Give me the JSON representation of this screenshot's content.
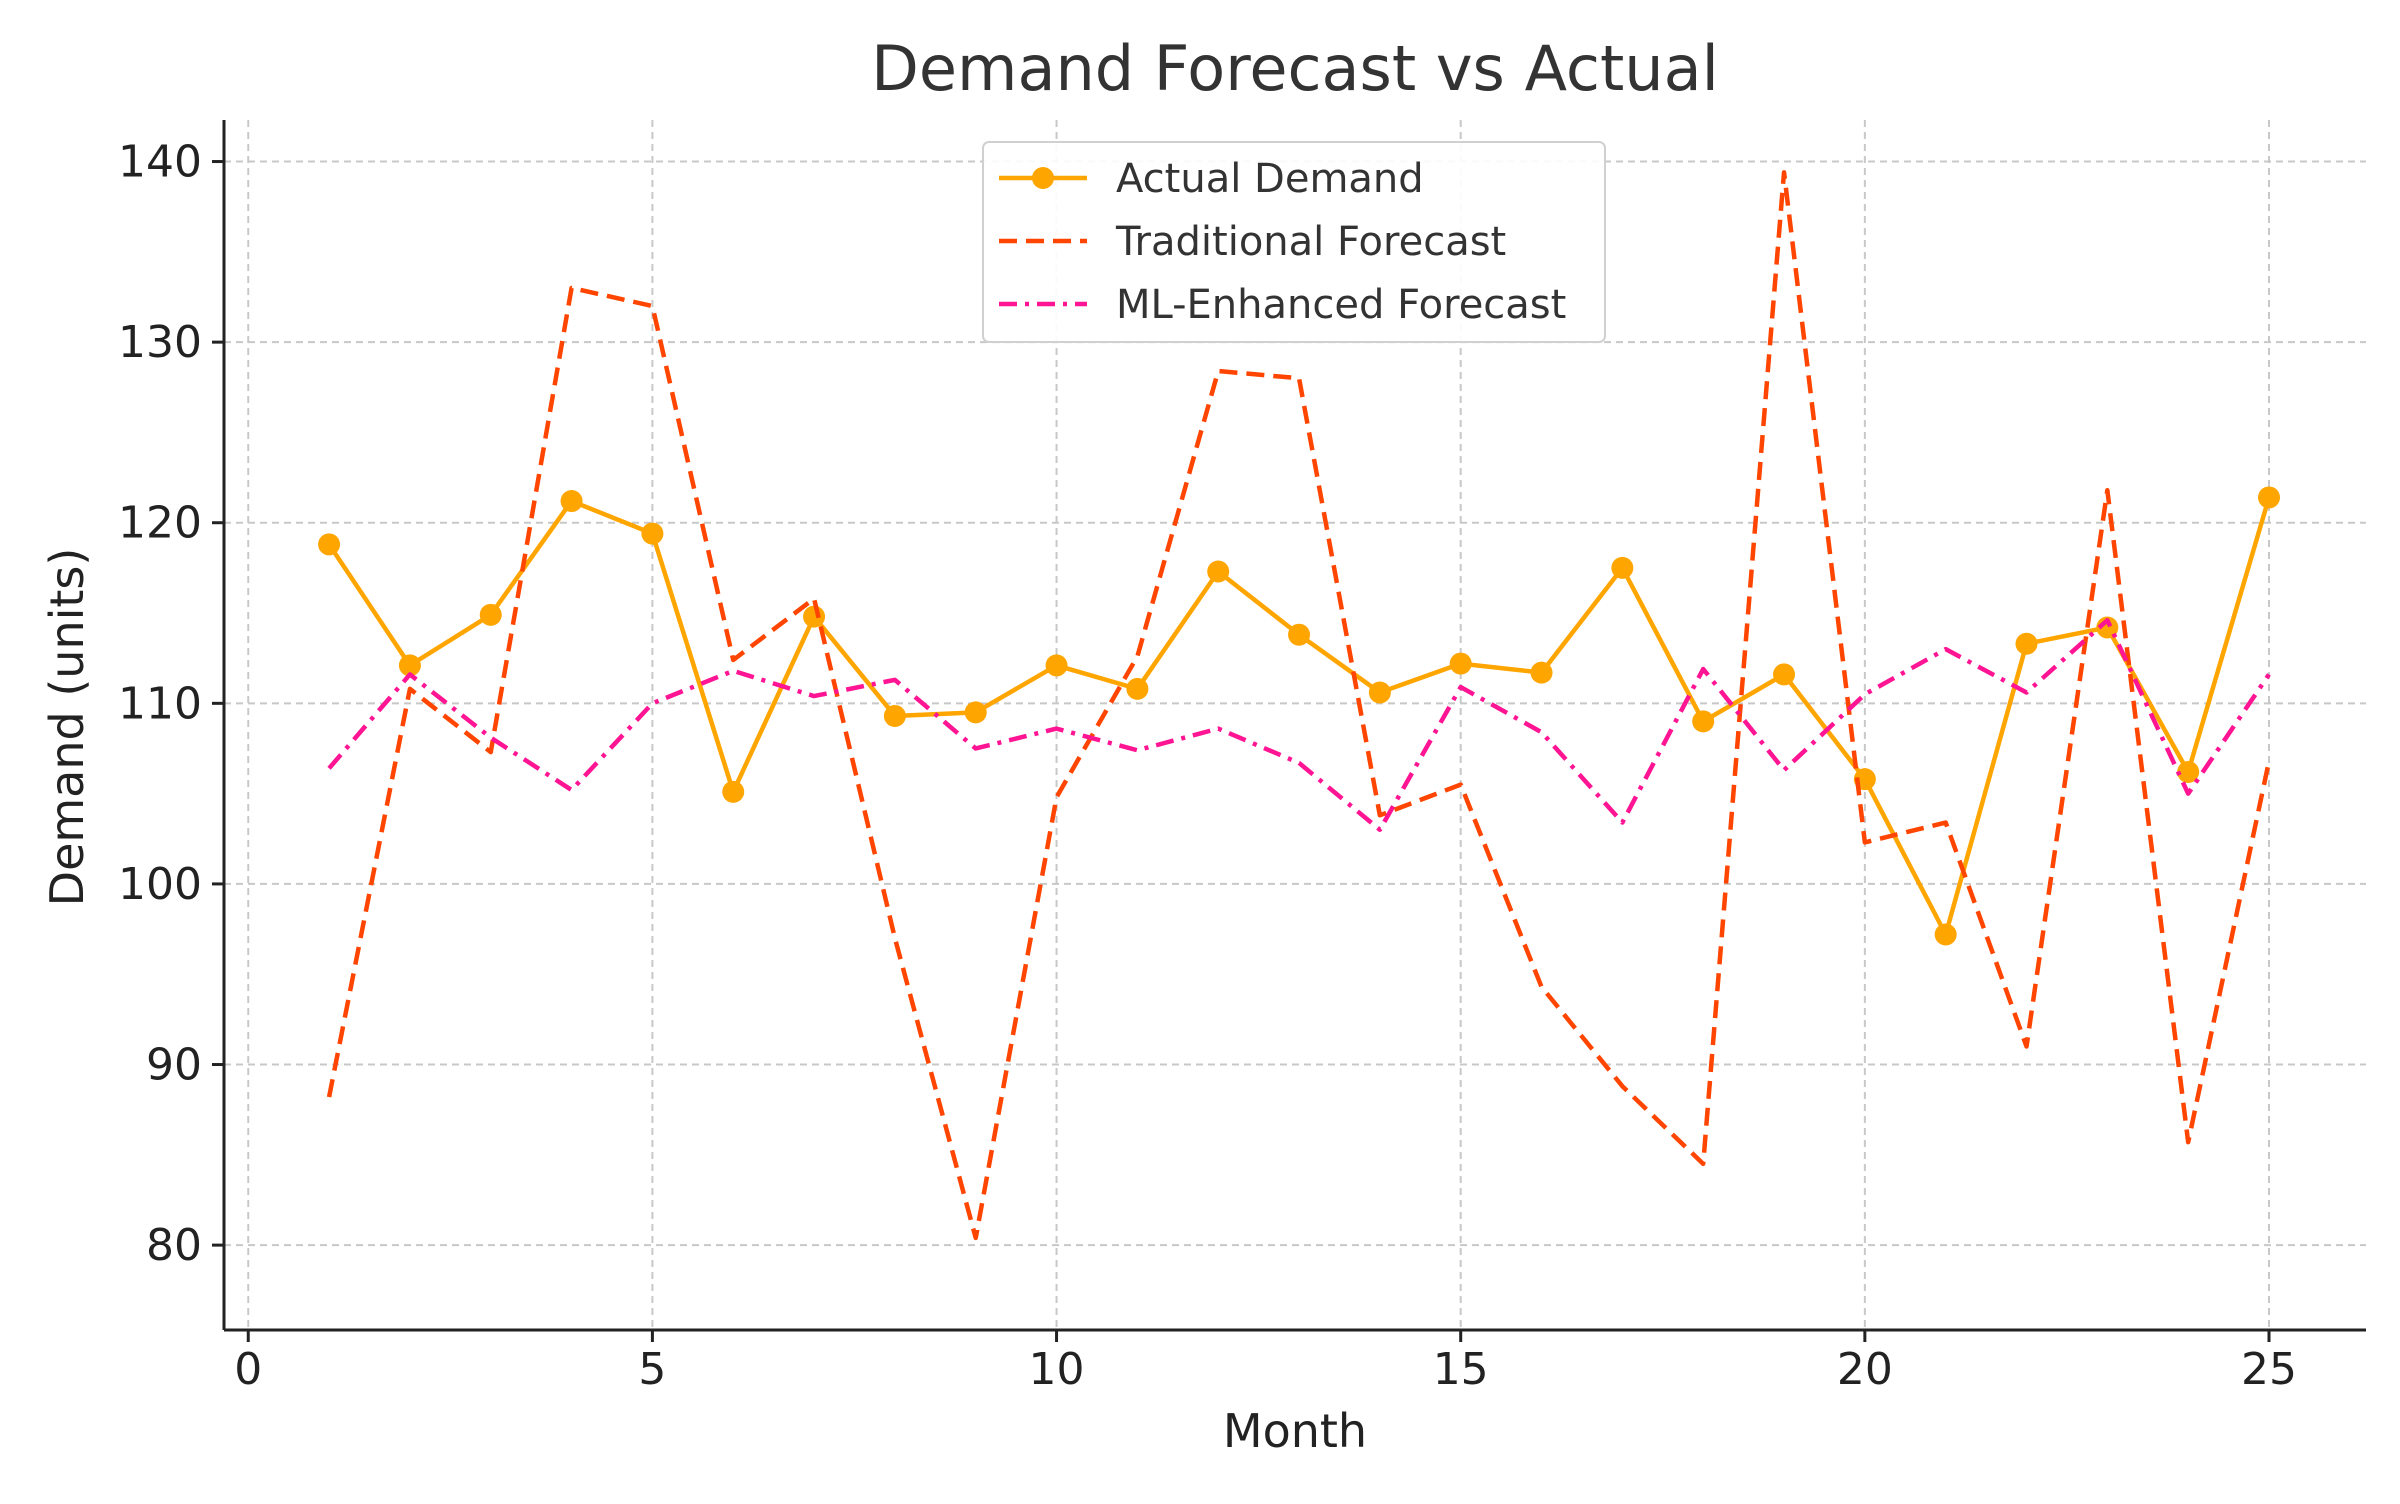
{
  "chart_data": {
    "type": "line",
    "title": "Demand Forecast vs Actual",
    "xlabel": "Month",
    "ylabel": "Demand (units)",
    "xlim": [
      -0.3,
      26.2
    ],
    "ylim": [
      75.3,
      142.3
    ],
    "x_ticks": [
      0,
      5,
      10,
      15,
      20,
      25
    ],
    "y_ticks": [
      80,
      90,
      100,
      110,
      120,
      130,
      140
    ],
    "grid": true,
    "legend_position": "top-center",
    "x": [
      1,
      2,
      3,
      4,
      5,
      6,
      7,
      8,
      9,
      10,
      11,
      12,
      13,
      14,
      15,
      16,
      17,
      18,
      19,
      20,
      21,
      22,
      23,
      24,
      25
    ],
    "series": [
      {
        "name": "Actual Demand",
        "style": "solid-marker",
        "color": "#FFA500",
        "values": [
          118.8,
          112.1,
          114.9,
          121.2,
          119.4,
          105.1,
          114.8,
          109.3,
          109.5,
          112.1,
          110.8,
          117.3,
          113.8,
          110.6,
          112.2,
          111.7,
          117.5,
          109.0,
          111.6,
          105.8,
          97.2,
          113.3,
          114.2,
          106.2,
          121.4
        ]
      },
      {
        "name": "Traditional Forecast",
        "style": "dashed",
        "color": "#FF4500",
        "values": [
          88.2,
          110.8,
          107.3,
          133.0,
          132.0,
          112.4,
          115.8,
          97.0,
          80.4,
          104.8,
          112.6,
          128.4,
          128.0,
          103.8,
          105.5,
          94.3,
          88.8,
          84.5,
          139.4,
          102.3,
          103.4,
          91.0,
          121.8,
          85.7,
          106.8
        ]
      },
      {
        "name": "ML-Enhanced Forecast",
        "style": "dashdot",
        "color": "#FF1493",
        "values": [
          106.4,
          111.6,
          108.1,
          105.2,
          110.0,
          111.8,
          110.4,
          111.3,
          107.5,
          108.6,
          107.4,
          108.6,
          106.7,
          103.0,
          110.9,
          108.4,
          103.4,
          111.9,
          106.3,
          110.5,
          113.0,
          110.6,
          114.6,
          105.0,
          111.6
        ]
      }
    ]
  }
}
